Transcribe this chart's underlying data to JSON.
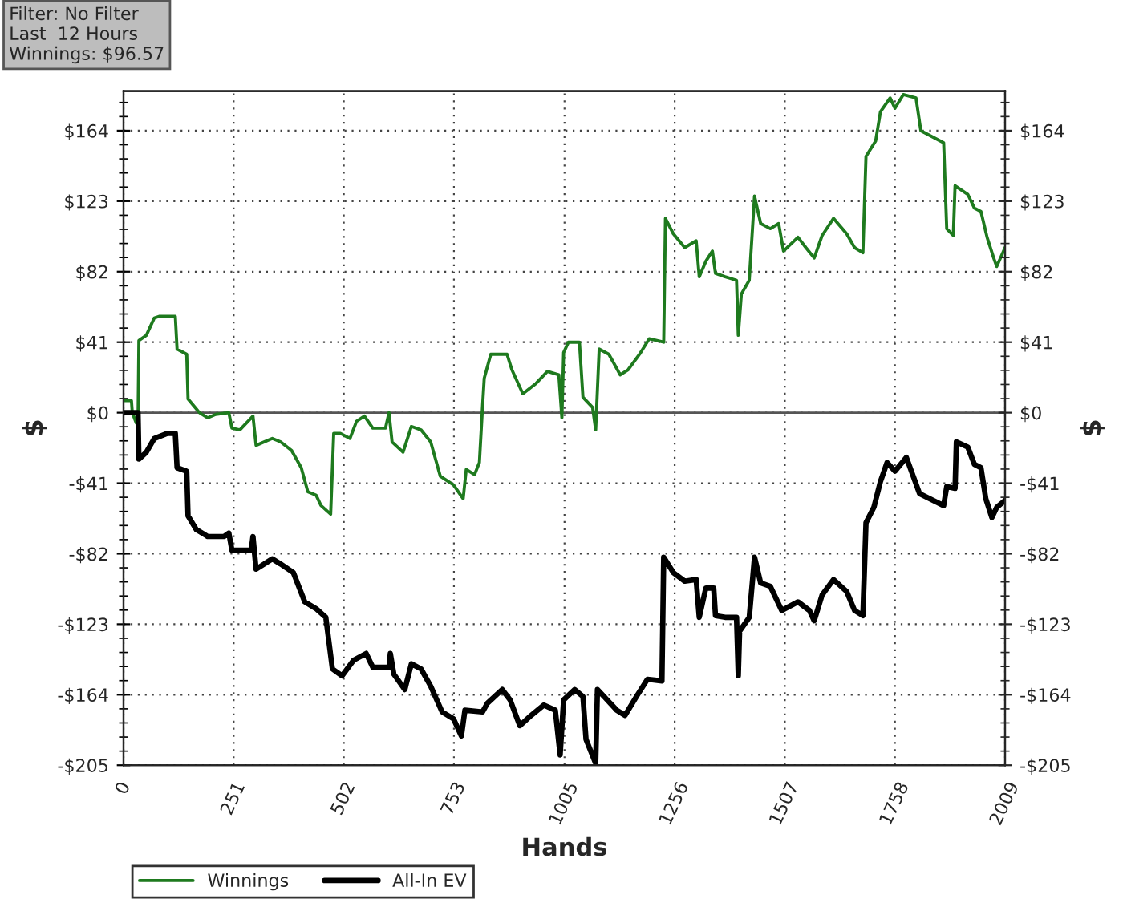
{
  "chart_data": {
    "type": "line",
    "xlabel": "Hands",
    "ylabel": "$",
    "y2label": "$",
    "annotations": [
      "Filter: No Filter",
      "Last  12 Hours",
      "Winnings: $96.57"
    ],
    "xlim": [
      0,
      2009
    ],
    "xticks": [
      0,
      251,
      502,
      753,
      1005,
      1256,
      1507,
      1758,
      2009
    ],
    "ylim": [
      -205,
      187
    ],
    "yticks": [
      {
        "value": -205,
        "label": "-$205"
      },
      {
        "value": -164,
        "label": "-$164"
      },
      {
        "value": -123,
        "label": "-$123"
      },
      {
        "value": -82,
        "label": "-$82"
      },
      {
        "value": -41,
        "label": "-$41"
      },
      {
        "value": 0,
        "label": "$0"
      },
      {
        "value": 41,
        "label": "$41"
      },
      {
        "value": 82,
        "label": "$82"
      },
      {
        "value": 123,
        "label": "$123"
      },
      {
        "value": 164,
        "label": "$164"
      }
    ],
    "y2lim": [
      -205,
      187
    ],
    "y2ticks": [
      {
        "value": -205,
        "label": "-$205"
      },
      {
        "value": -164,
        "label": "-$164"
      },
      {
        "value": -123,
        "label": "-$123"
      },
      {
        "value": -82,
        "label": "-$82"
      },
      {
        "value": -41,
        "label": "-$41"
      },
      {
        "value": 0,
        "label": "$0"
      },
      {
        "value": 41,
        "label": "$41"
      },
      {
        "value": 82,
        "label": "$82"
      },
      {
        "value": 123,
        "label": "$123"
      },
      {
        "value": 164,
        "label": "$164"
      }
    ],
    "grid": true,
    "legend": "bottom left",
    "line_style": "solid",
    "marker": "none",
    "ref_lines": [
      {
        "axis": "y",
        "value": 0,
        "color": "#555555"
      }
    ],
    "series": [
      {
        "name": "Winnings",
        "color": "#1e7a1e",
        "x": [
          0,
          18,
          20,
          29,
          33,
          35,
          52,
          70,
          81,
          118,
          122,
          144,
          147,
          173,
          192,
          210,
          240,
          247,
          265,
          295,
          302,
          339,
          358,
          383,
          405,
          420,
          439,
          450,
          472,
          479,
          494,
          516,
          531,
          549,
          568,
          597,
          605,
          612,
          637,
          656,
          678,
          700,
          722,
          752,
          774,
          781,
          800,
          811,
          818,
          822,
          837,
          874,
          885,
          910,
          940,
          966,
          992,
          999,
          1003,
          1014,
          1039,
          1047,
          1069,
          1076,
          1084,
          1106,
          1132,
          1150,
          1176,
          1198,
          1231,
          1235,
          1253,
          1279,
          1305,
          1312,
          1327,
          1342,
          1349,
          1371,
          1397,
          1401,
          1408,
          1426,
          1438,
          1452,
          1474,
          1493,
          1504,
          1537,
          1555,
          1574,
          1592,
          1618,
          1648,
          1666,
          1685,
          1692,
          1714,
          1725,
          1747,
          1758,
          1777,
          1806,
          1817,
          1869,
          1876,
          1891,
          1895,
          1924,
          1939,
          1954,
          1968,
          1983,
          1990,
          2009
        ],
        "values": [
          7,
          7,
          0,
          -6,
          -6,
          42,
          45,
          55,
          56,
          56,
          37,
          34,
          8,
          0,
          -3,
          -1,
          0,
          -9,
          -10,
          -2,
          -19,
          -15,
          -17,
          -22,
          -32,
          -46,
          -48,
          -54,
          -59,
          -12,
          -12,
          -15,
          -5,
          -2,
          -9,
          -9,
          0,
          -17,
          -23,
          -8,
          -10,
          -17,
          -37,
          -42,
          -50,
          -33,
          -36,
          -29,
          3,
          20,
          34,
          34,
          25,
          11,
          17,
          24,
          22,
          -3,
          35,
          41,
          41,
          9,
          3,
          -10,
          37,
          34,
          22,
          25,
          34,
          43,
          41,
          113,
          104,
          96,
          100,
          79,
          88,
          94,
          81,
          79,
          77,
          45,
          69,
          77,
          126,
          110,
          107,
          110,
          94,
          102,
          96,
          90,
          103,
          113,
          104,
          96,
          93,
          149,
          158,
          175,
          183,
          177,
          185,
          183,
          164,
          157,
          107,
          103,
          132,
          127,
          119,
          117,
          102,
          90,
          85,
          96
        ]
      },
      {
        "name": "All-In EV",
        "color": "#000000",
        "x": [
          0,
          33,
          35,
          52,
          70,
          100,
          118,
          122,
          144,
          147,
          166,
          192,
          229,
          240,
          247,
          291,
          295,
          302,
          339,
          358,
          387,
          413,
          439,
          461,
          476,
          498,
          524,
          553,
          568,
          605,
          608,
          616,
          641,
          656,
          678,
          700,
          726,
          752,
          770,
          778,
          818,
          829,
          863,
          881,
          903,
          929,
          958,
          984,
          995,
          1003,
          1028,
          1047,
          1054,
          1076,
          1080,
          1095,
          1124,
          1143,
          1169,
          1194,
          1227,
          1231,
          1253,
          1279,
          1305,
          1312,
          1327,
          1345,
          1349,
          1371,
          1397,
          1401,
          1404,
          1426,
          1438,
          1452,
          1474,
          1500,
          1537,
          1563,
          1574,
          1592,
          1618,
          1648,
          1666,
          1685,
          1692,
          1710,
          1725,
          1740,
          1758,
          1784,
          1814,
          1869,
          1876,
          1895,
          1898,
          1924,
          1939,
          1954,
          1965,
          1979,
          1990,
          2009
        ],
        "values": [
          0,
          0,
          -27,
          -23,
          -15,
          -12,
          -12,
          -32,
          -34,
          -60,
          -68,
          -72,
          -72,
          -70,
          -80,
          -80,
          -72,
          -91,
          -85,
          -88,
          -93,
          -110,
          -114,
          -119,
          -149,
          -153,
          -144,
          -140,
          -148,
          -148,
          -140,
          -152,
          -161,
          -146,
          -149,
          -159,
          -174,
          -178,
          -188,
          -173,
          -174,
          -169,
          -161,
          -167,
          -182,
          -176,
          -170,
          -173,
          -199,
          -167,
          -161,
          -165,
          -190,
          -204,
          -161,
          -165,
          -173,
          -176,
          -165,
          -155,
          -156,
          -84,
          -93,
          -98,
          -97,
          -119,
          -102,
          -102,
          -118,
          -119,
          -119,
          -153,
          -127,
          -119,
          -84,
          -99,
          -101,
          -115,
          -110,
          -115,
          -121,
          -106,
          -97,
          -104,
          -115,
          -118,
          -64,
          -55,
          -40,
          -29,
          -34,
          -26,
          -47,
          -54,
          -43,
          -44,
          -17,
          -20,
          -30,
          -32,
          -50,
          -61,
          -55,
          -51
        ]
      }
    ]
  }
}
